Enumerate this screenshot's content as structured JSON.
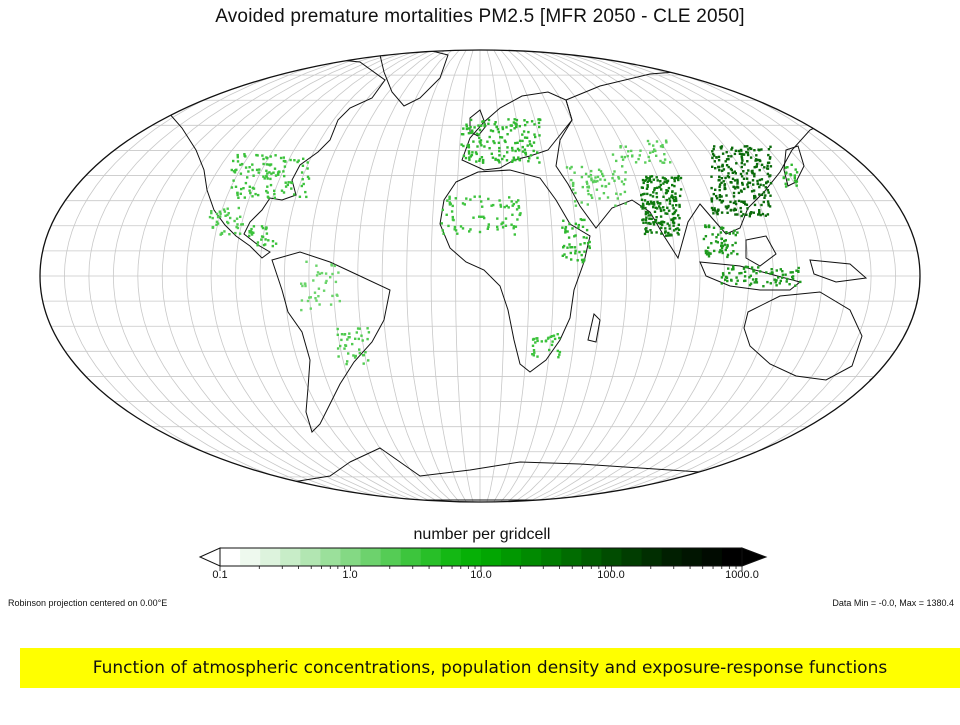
{
  "title": "Avoided premature mortalities PM2.5  [MFR 2050 - CLE 2050]",
  "map": {
    "projection_note": "Robinson projection centered on 0.00°E",
    "data_range_text": "Data Min = -0.0, Max = 1380.4",
    "fill_color": "#2fb82f",
    "border_color": "#111111",
    "grid_color": "#c8c8c8"
  },
  "colorbar": {
    "label": "number per gridcell",
    "ticks": [
      "0.1",
      "1.0",
      "10.0",
      "100.0",
      "1000.0"
    ],
    "scale": "log",
    "colors": [
      "#ffffff",
      "#eef9ee",
      "#ddf3dd",
      "#c8edc8",
      "#b2e6b2",
      "#9be09b",
      "#84d984",
      "#6dd26d",
      "#55cc55",
      "#3dc53d",
      "#28bf28",
      "#14b814",
      "#06b006",
      "#02a602",
      "#019801",
      "#018a01",
      "#017c01",
      "#016c01",
      "#015c01",
      "#014c01",
      "#013d01",
      "#012e01",
      "#011f01",
      "#011501",
      "#010b01",
      "#000000"
    ]
  },
  "caption": "Function of atmospheric concentrations, population density and exposure-response functions"
}
